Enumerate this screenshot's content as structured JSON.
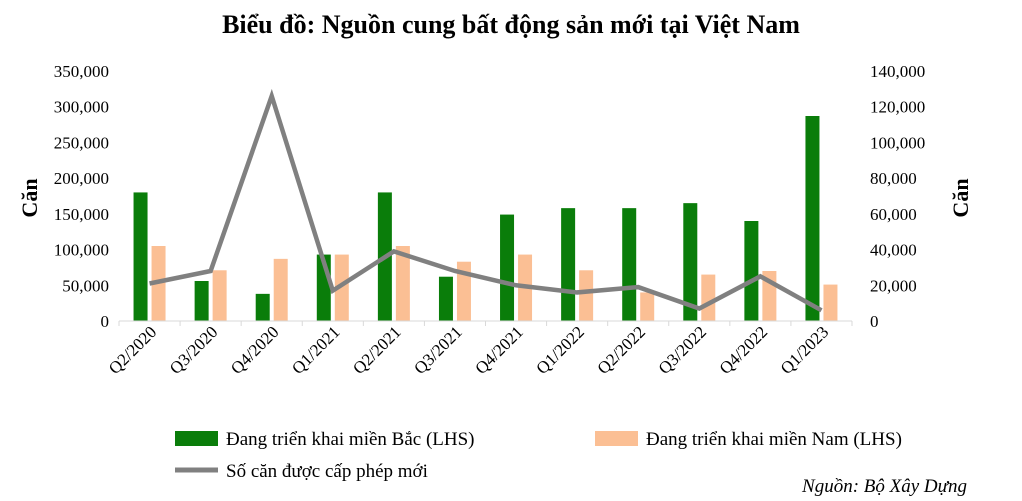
{
  "chart_data": {
    "type": "bar",
    "title": "Biểu đồ: Nguồn cung bất động sản mới tại Việt Nam",
    "categories": [
      "Q2/2020",
      "Q3/2020",
      "Q4/2020",
      "Q1/2021",
      "Q2/2021",
      "Q3/2021",
      "Q4/2021",
      "Q1/2022",
      "Q2/2022",
      "Q3/2022",
      "Q4/2022",
      "Q1/2023"
    ],
    "series": [
      {
        "name": "Đang triển khai miền Bắc (LHS)",
        "type": "bar",
        "axis": "left",
        "color": "#0a7d0a",
        "values": [
          180000,
          56000,
          38000,
          93000,
          180000,
          62000,
          149000,
          158000,
          158000,
          165000,
          140000,
          287000
        ]
      },
      {
        "name": "Đang triển khai miền Nam (LHS)",
        "type": "bar",
        "axis": "left",
        "color": "#fbbf94",
        "values": [
          105000,
          71000,
          87000,
          93000,
          105000,
          83000,
          93000,
          71000,
          40000,
          65000,
          70000,
          51000
        ]
      },
      {
        "name": "Số căn được cấp phép mới",
        "type": "line",
        "axis": "right",
        "color": "#808080",
        "values": [
          21000,
          28000,
          126000,
          17000,
          39000,
          28000,
          20000,
          16000,
          19000,
          7000,
          25000,
          6000
        ]
      }
    ],
    "ylabel": "Căn",
    "y2label": "Căn",
    "ylim": [
      0,
      350000
    ],
    "y2lim": [
      0,
      140000
    ],
    "yticks": [
      "0",
      "50,000",
      "100,000",
      "150,000",
      "200,000",
      "250,000",
      "300,000",
      "350,000"
    ],
    "y2ticks": [
      "0",
      "20,000",
      "40,000",
      "60,000",
      "80,000",
      "100,000",
      "120,000",
      "140,000"
    ],
    "grid": false,
    "legend": "bottom"
  },
  "source": "Nguồn: Bộ Xây Dựng"
}
